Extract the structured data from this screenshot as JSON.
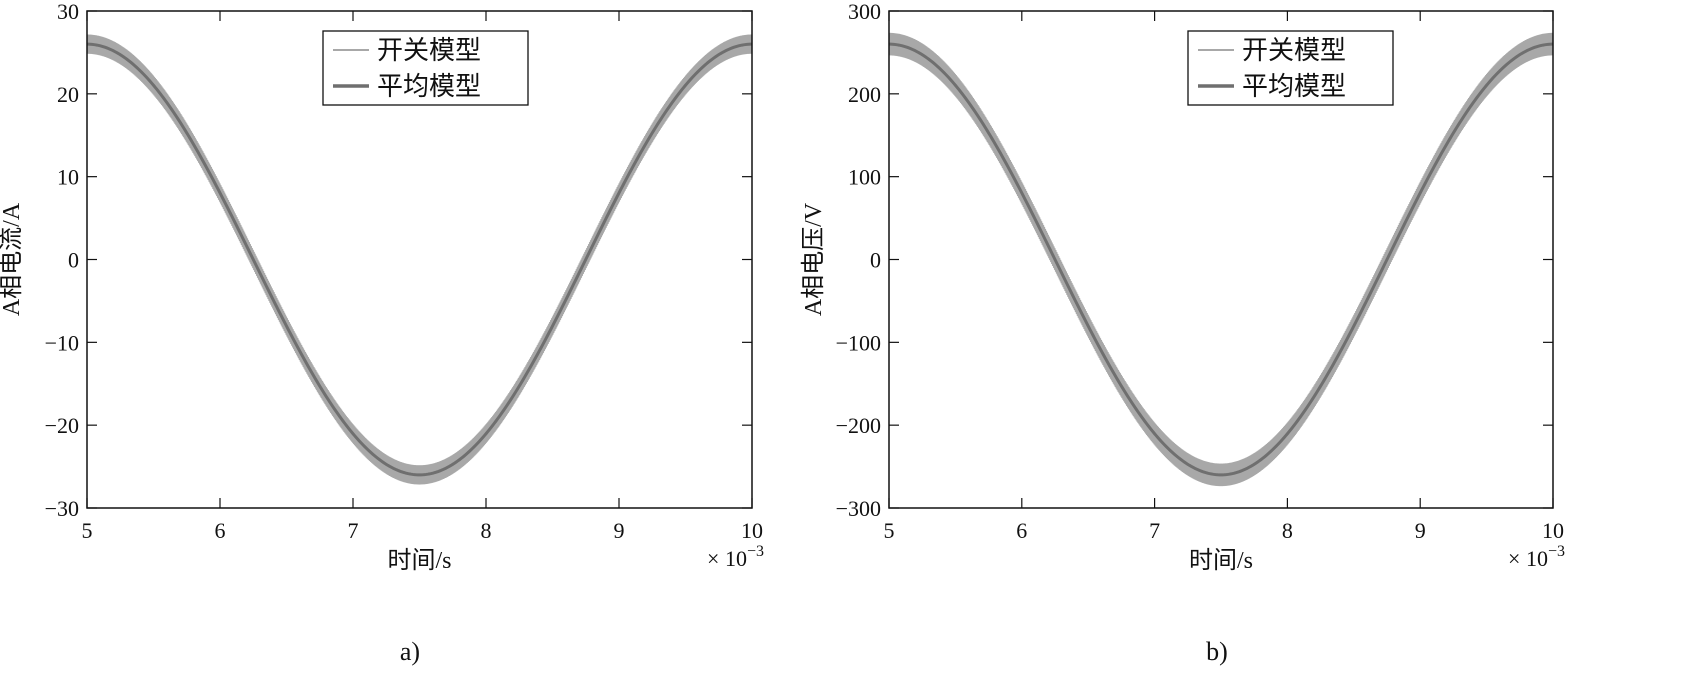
{
  "chart_data": [
    {
      "type": "line",
      "caption": "a)",
      "xlabel": "时间/s",
      "ylabel": "A相电流/A",
      "x_multiplier": "× 10",
      "x_multiplier_exponent": "−3",
      "xlim": [
        5,
        10
      ],
      "ylim": [
        -30,
        30
      ],
      "xticks": [
        5,
        6,
        7,
        8,
        9,
        10
      ],
      "yticks": [
        -30,
        -20,
        -10,
        0,
        10,
        20,
        30
      ],
      "xtick_labels": [
        "5",
        "6",
        "7",
        "8",
        "9",
        "10"
      ],
      "ytick_labels": [
        "−30",
        "−20",
        "−10",
        "0",
        "10",
        "20",
        "30"
      ],
      "legend_position": "top-center",
      "grid": false,
      "series": [
        {
          "name": "开关模型",
          "color": "#a8a8a8",
          "amplitude": 26,
          "period": 5,
          "peak_at": 5,
          "ripple": 1.1
        },
        {
          "name": "平均模型",
          "color": "#6f6f6f",
          "amplitude": 26,
          "period": 5,
          "peak_at": 5
        }
      ]
    },
    {
      "type": "line",
      "caption": "b)",
      "xlabel": "时间/s",
      "ylabel": "A相电压/V",
      "x_multiplier": "× 10",
      "x_multiplier_exponent": "−3",
      "xlim": [
        5,
        10
      ],
      "ylim": [
        -300,
        300
      ],
      "xticks": [
        5,
        6,
        7,
        8,
        9,
        10
      ],
      "yticks": [
        -300,
        -200,
        -100,
        0,
        100,
        200,
        300
      ],
      "xtick_labels": [
        "5",
        "6",
        "7",
        "8",
        "9",
        "10"
      ],
      "ytick_labels": [
        "−300",
        "−200",
        "−100",
        "0",
        "100",
        "200",
        "300"
      ],
      "legend_position": "top-center",
      "grid": false,
      "series": [
        {
          "name": "开关模型",
          "color": "#a8a8a8",
          "amplitude": 260,
          "period": 5,
          "peak_at": 5,
          "ripple": 13
        },
        {
          "name": "平均模型",
          "color": "#6f6f6f",
          "amplitude": 260,
          "period": 5,
          "peak_at": 5
        }
      ]
    }
  ]
}
